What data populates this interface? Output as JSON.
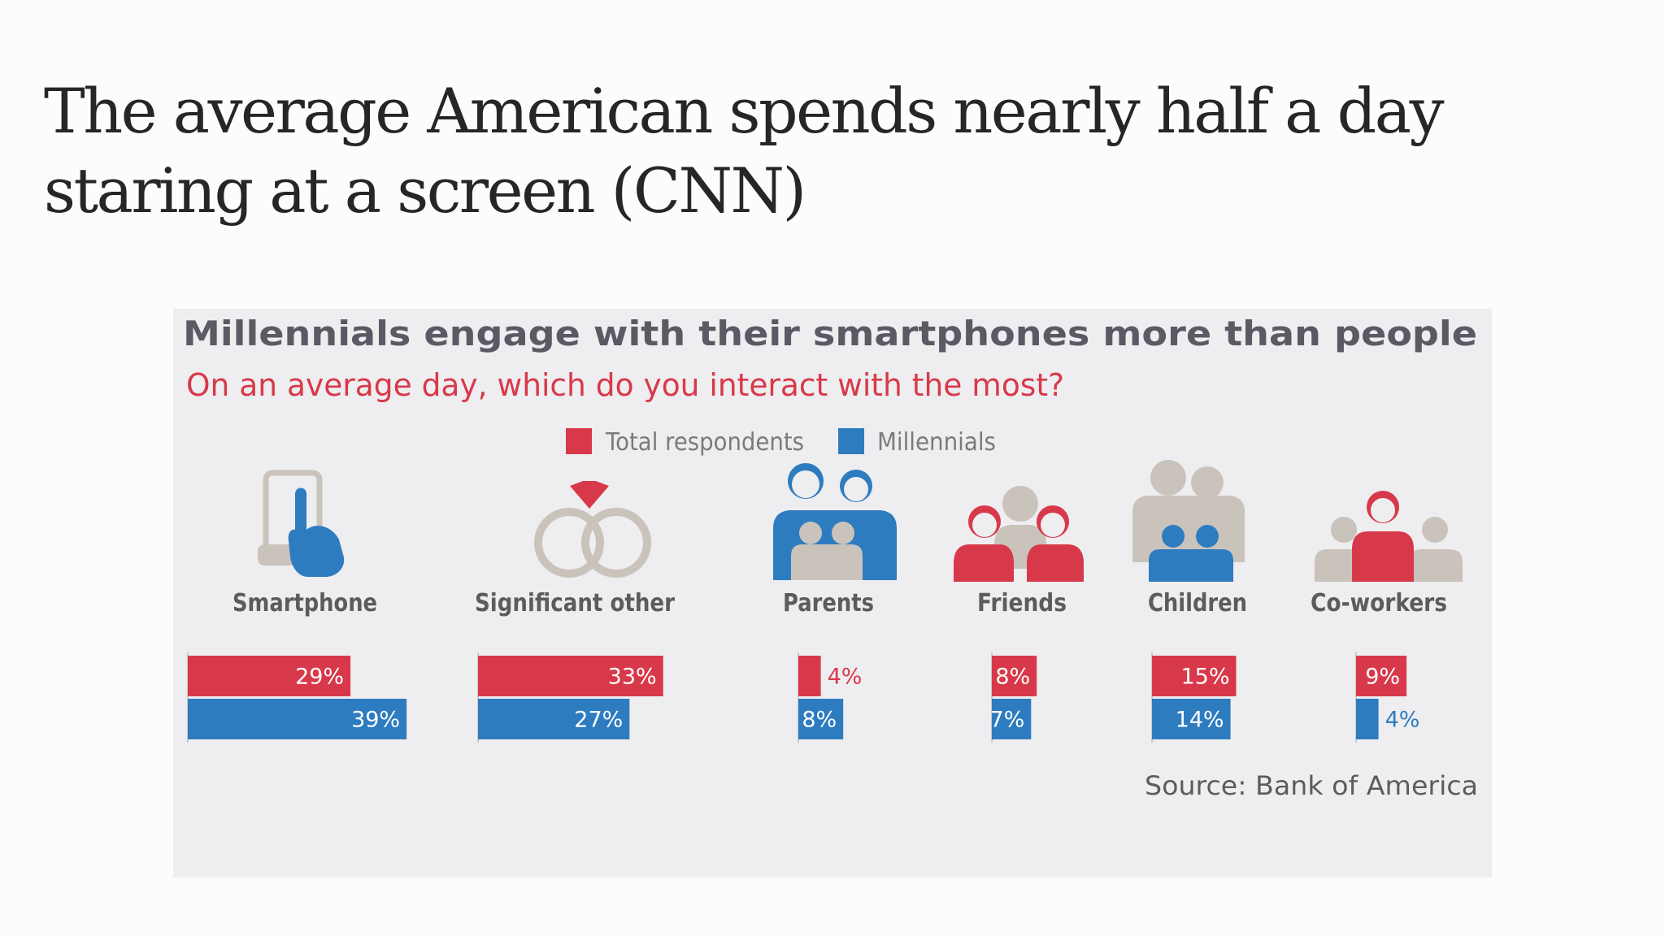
{
  "headline": "The average American spends nearly half a day staring at a screen (CNN)",
  "chart_data": {
    "type": "bar",
    "title": "Millennials engage with their smartphones more than people",
    "subtitle": "On an average day, which do you interact with the most?",
    "source": "Source: Bank of America",
    "categories": [
      "Smartphone",
      "Significant other",
      "Parents",
      "Friends",
      "Children",
      "Co-workers"
    ],
    "category_icons": [
      "smartphone-icon",
      "rings-icon",
      "parents-icon",
      "friends-icon",
      "children-icon",
      "coworkers-icon"
    ],
    "series": [
      {
        "name": "Total respondents",
        "color": "#d8394a",
        "values": [
          29,
          33,
          4,
          8,
          15,
          9
        ]
      },
      {
        "name": "Millennials",
        "color": "#2e7cc0",
        "values": [
          39,
          27,
          8,
          7,
          14,
          4
        ]
      }
    ],
    "value_suffix": "%",
    "orientation": "horizontal",
    "legend_position": "top-center",
    "grid": false,
    "icon_colors": {
      "red": "#d8394a",
      "blue": "#2e7cc0",
      "grey": "#c9c3bc",
      "dark": "#6a6a6a"
    }
  }
}
